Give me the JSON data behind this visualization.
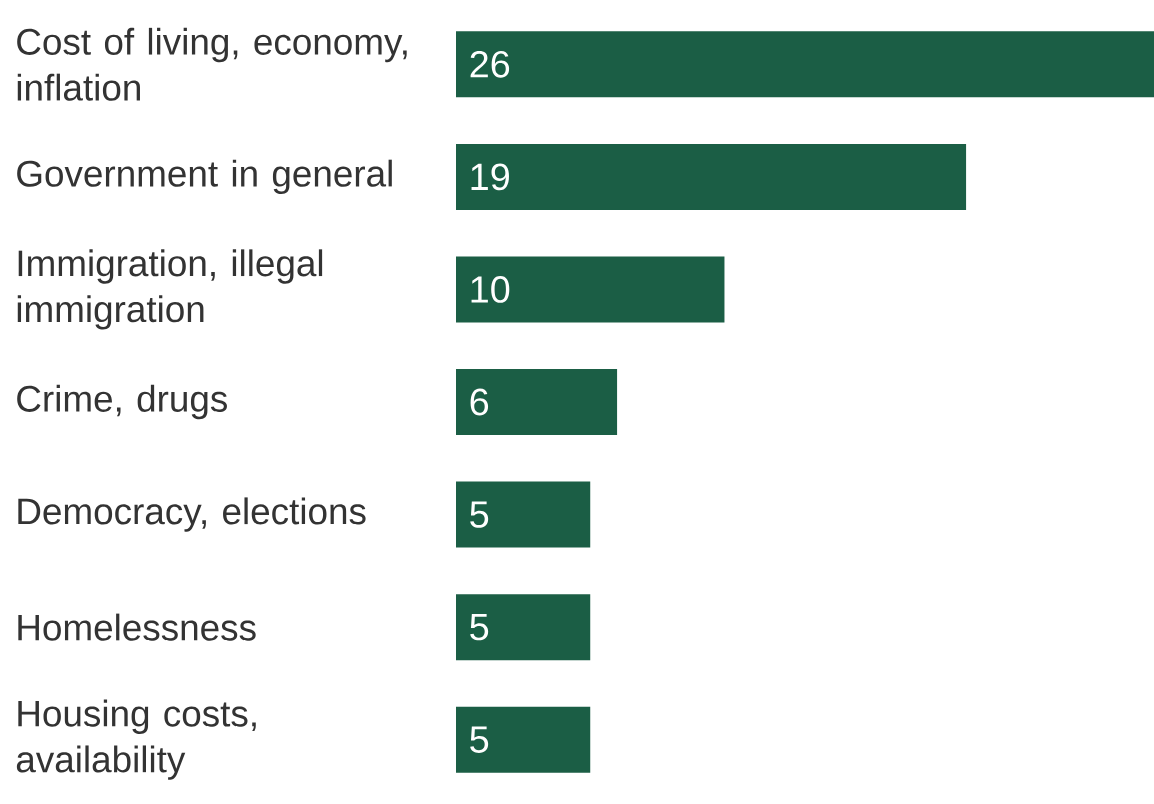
{
  "chart_data": {
    "type": "bar",
    "orientation": "horizontal",
    "categories": [
      "Cost of living, economy, inflation",
      "Government in general",
      "Immigration, illegal immigration",
      "Crime, drugs",
      "Democracy, elections",
      "Homelessness",
      "Housing costs, availability"
    ],
    "values": [
      26,
      19,
      10,
      6,
      5,
      5,
      5
    ],
    "color": "#1b5e45",
    "data_labels": true
  }
}
